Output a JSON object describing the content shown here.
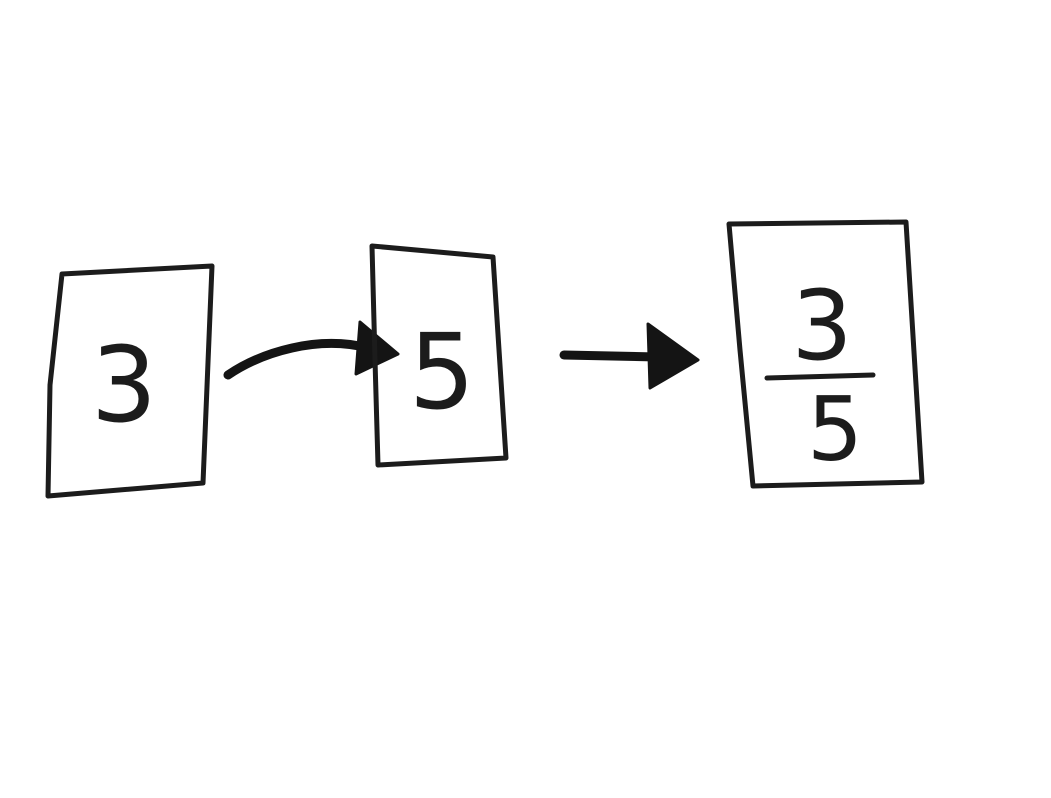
{
  "cards": {
    "first": {
      "value": "3"
    },
    "second": {
      "value": "5"
    },
    "result": {
      "numerator": "3",
      "denominator": "5"
    }
  },
  "colors": {
    "ink": "#1c1c1c",
    "arrow": "#141414",
    "background": "#ffffff"
  }
}
